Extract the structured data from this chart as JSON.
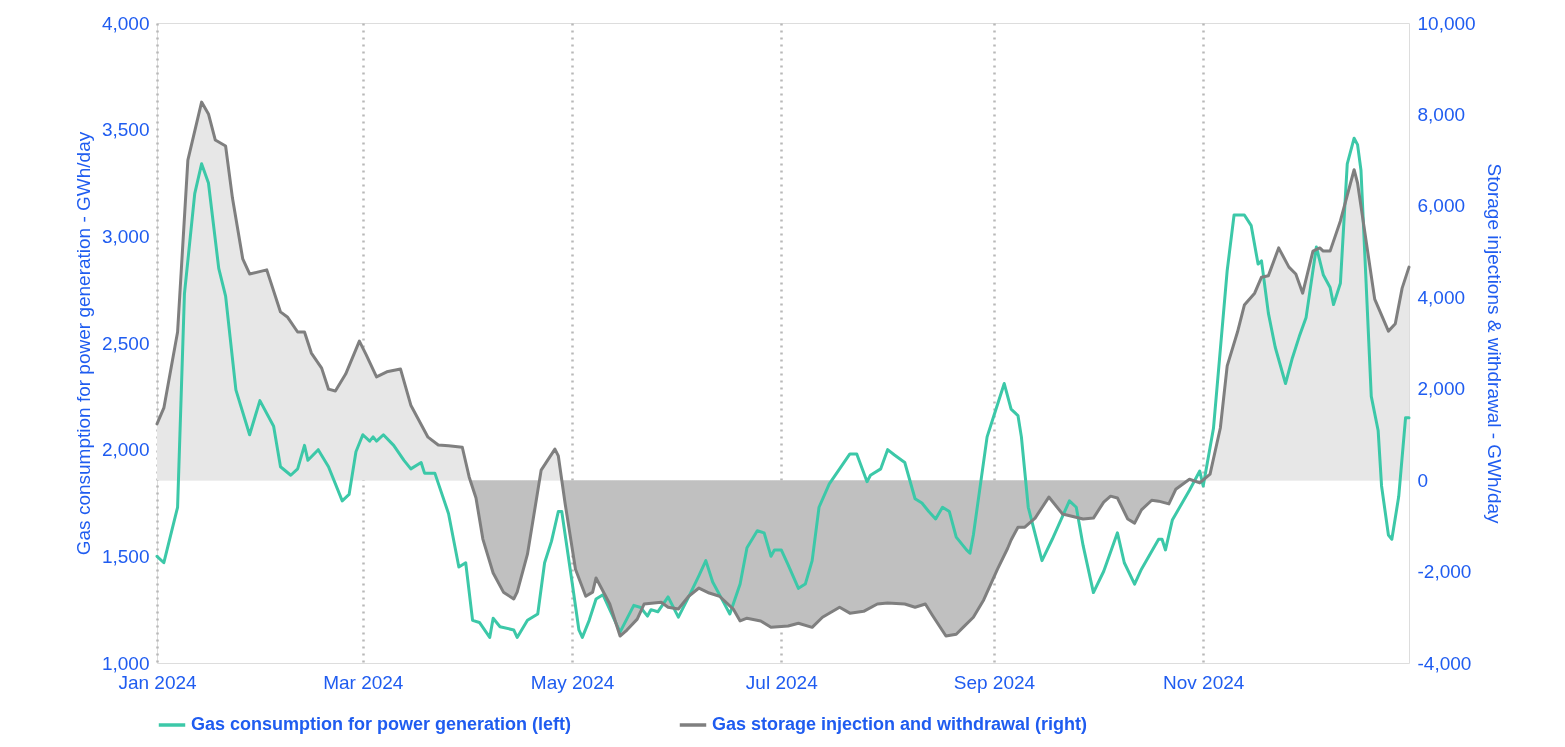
{
  "chart_data": {
    "type": "line",
    "ylabel": "Gas consumption for power generation - GWh/day",
    "y2label": "Storage injections & withdrawal - GWh/day",
    "xlim": [
      "2024-01-01",
      "2024-12-31"
    ],
    "xticks": [
      {
        "value": "2024-01-01",
        "label": "Jan 2024"
      },
      {
        "value": "2024-03-01",
        "label": "Mar 2024"
      },
      {
        "value": "2024-05-01",
        "label": "May 2024"
      },
      {
        "value": "2024-07-01",
        "label": "Jul 2024"
      },
      {
        "value": "2024-09-01",
        "label": "Sep 2024"
      },
      {
        "value": "2024-11-01",
        "label": "Nov 2024"
      }
    ],
    "ylim": [
      1000,
      4000
    ],
    "yticks": [
      {
        "value": 1000,
        "label": "1,000"
      },
      {
        "value": 1500,
        "label": "1,500"
      },
      {
        "value": 2000,
        "label": "2,000"
      },
      {
        "value": 2500,
        "label": "2,500"
      },
      {
        "value": 3000,
        "label": "3,000"
      },
      {
        "value": 3500,
        "label": "3,500"
      },
      {
        "value": 4000,
        "label": "4,000"
      }
    ],
    "y2lim": [
      -4000,
      10000
    ],
    "y2ticks": [
      {
        "value": -4000,
        "label": "-4,000"
      },
      {
        "value": -2000,
        "label": "-2,000"
      },
      0,
      {
        "value": 2000,
        "label": "2,000"
      },
      {
        "value": 4000,
        "label": "4,000"
      },
      {
        "value": 6000,
        "label": "6,000"
      },
      {
        "value": 8000,
        "label": "8,000"
      },
      {
        "value": 10000,
        "label": "10,000"
      }
    ],
    "grid": "x",
    "legend": "bottom",
    "line_style": "solid",
    "series": [
      {
        "name": "Gas consumption for power generation (left)",
        "color": "#3cc8a8",
        "x": [
          "2024-01-01",
          "2024-01-03",
          "2024-01-07",
          "2024-01-09",
          "2024-01-12",
          "2024-01-14",
          "2024-01-16",
          "2024-01-19",
          "2024-01-21",
          "2024-01-24",
          "2024-01-28",
          "2024-01-31",
          "2024-02-04",
          "2024-02-06",
          "2024-02-09",
          "2024-02-11",
          "2024-02-13",
          "2024-02-14",
          "2024-02-17",
          "2024-02-20",
          "2024-02-24",
          "2024-02-26",
          "2024-02-28",
          "2024-03-01",
          "2024-03-03",
          "2024-03-04",
          "2024-03-05",
          "2024-03-07",
          "2024-03-10",
          "2024-03-13",
          "2024-03-15",
          "2024-03-18",
          "2024-03-19",
          "2024-03-22",
          "2024-03-26",
          "2024-03-29",
          "2024-03-31",
          "2024-04-02",
          "2024-04-04",
          "2024-04-07",
          "2024-04-08",
          "2024-04-10",
          "2024-04-14",
          "2024-04-15",
          "2024-04-18",
          "2024-04-21",
          "2024-04-23",
          "2024-04-25",
          "2024-04-27",
          "2024-04-28",
          "2024-05-01",
          "2024-05-03",
          "2024-05-04",
          "2024-05-06",
          "2024-05-08",
          "2024-05-10",
          "2024-05-12",
          "2024-05-15",
          "2024-05-19",
          "2024-05-21",
          "2024-05-23",
          "2024-05-24",
          "2024-05-26",
          "2024-05-29",
          "2024-06-01",
          "2024-06-04",
          "2024-06-07",
          "2024-06-09",
          "2024-06-11",
          "2024-06-14",
          "2024-06-16",
          "2024-06-19",
          "2024-06-21",
          "2024-06-24",
          "2024-06-26",
          "2024-06-28",
          "2024-06-29",
          "2024-07-01",
          "2024-07-03",
          "2024-07-06",
          "2024-07-08",
          "2024-07-10",
          "2024-07-12",
          "2024-07-15",
          "2024-07-18",
          "2024-07-21",
          "2024-07-23",
          "2024-07-26",
          "2024-07-27",
          "2024-07-30",
          "2024-08-01",
          "2024-08-03",
          "2024-08-06",
          "2024-08-09",
          "2024-08-11",
          "2024-08-13",
          "2024-08-15",
          "2024-08-17",
          "2024-08-19",
          "2024-08-21",
          "2024-08-24",
          "2024-08-25",
          "2024-08-26",
          "2024-08-30",
          "2024-09-01",
          "2024-09-04",
          "2024-09-06",
          "2024-09-08",
          "2024-09-09",
          "2024-09-11",
          "2024-09-15",
          "2024-09-18",
          "2024-09-23",
          "2024-09-25",
          "2024-09-27",
          "2024-09-30",
          "2024-10-03",
          "2024-10-07",
          "2024-10-09",
          "2024-10-12",
          "2024-10-14",
          "2024-10-19",
          "2024-10-20",
          "2024-10-21",
          "2024-10-23",
          "2024-10-28",
          "2024-10-31",
          "2024-11-01",
          "2024-11-04",
          "2024-11-08",
          "2024-11-10",
          "2024-11-13",
          "2024-11-15",
          "2024-11-17",
          "2024-11-18",
          "2024-11-20",
          "2024-11-22",
          "2024-11-25",
          "2024-11-27",
          "2024-11-29",
          "2024-12-01",
          "2024-12-04",
          "2024-12-06",
          "2024-12-08",
          "2024-12-09",
          "2024-12-11",
          "2024-12-13",
          "2024-12-15",
          "2024-12-16",
          "2024-12-17",
          "2024-12-20",
          "2024-12-22",
          "2024-12-23",
          "2024-12-25",
          "2024-12-26",
          "2024-12-28",
          "2024-12-30",
          "2024-12-31"
        ],
        "values": [
          1500,
          1470,
          1730,
          2730,
          3200,
          3340,
          3250,
          2850,
          2720,
          2280,
          2070,
          2230,
          2110,
          1920,
          1880,
          1910,
          2020,
          1950,
          2000,
          1920,
          1760,
          1790,
          1990,
          2070,
          2040,
          2060,
          2040,
          2070,
          2020,
          1950,
          1910,
          1940,
          1890,
          1890,
          1700,
          1450,
          1470,
          1200,
          1190,
          1120,
          1210,
          1170,
          1155,
          1120,
          1200,
          1230,
          1470,
          1570,
          1710,
          1710,
          1380,
          1155,
          1120,
          1200,
          1300,
          1320,
          1250,
          1145,
          1270,
          1260,
          1220,
          1250,
          1240,
          1310,
          1215,
          1310,
          1410,
          1480,
          1380,
          1290,
          1230,
          1370,
          1540,
          1620,
          1610,
          1500,
          1530,
          1530,
          1460,
          1350,
          1370,
          1480,
          1730,
          1840,
          1910,
          1980,
          1980,
          1850,
          1880,
          1910,
          2000,
          1975,
          1940,
          1770,
          1750,
          1710,
          1675,
          1730,
          1710,
          1590,
          1530,
          1515,
          1600,
          2060,
          2160,
          2310,
          2190,
          2160,
          2060,
          1730,
          1480,
          1580,
          1760,
          1730,
          1550,
          1330,
          1430,
          1610,
          1470,
          1370,
          1440,
          1580,
          1580,
          1530,
          1670,
          1810,
          1900,
          1830,
          2100,
          2840,
          3100,
          3100,
          3050,
          2870,
          2885,
          2640,
          2480,
          2310,
          2430,
          2530,
          2620,
          2950,
          2820,
          2760,
          2680,
          2780,
          3340,
          3460,
          3430,
          3310,
          2250,
          2090,
          1830,
          1600,
          1580,
          1780,
          2150,
          2150
        ]
      },
      {
        "name": "Gas storage injection and withdrawal (right)",
        "color": "#7f7f7f",
        "type": "area",
        "axis": "y2",
        "x": [
          "2024-01-01",
          "2024-01-03",
          "2024-01-07",
          "2024-01-10",
          "2024-01-14",
          "2024-01-16",
          "2024-01-18",
          "2024-01-21",
          "2024-01-23",
          "2024-01-26",
          "2024-01-28",
          "2024-02-02",
          "2024-02-06",
          "2024-02-08",
          "2024-02-11",
          "2024-02-13",
          "2024-02-15",
          "2024-02-18",
          "2024-02-20",
          "2024-02-22",
          "2024-02-25",
          "2024-02-29",
          "2024-03-02",
          "2024-03-05",
          "2024-03-08",
          "2024-03-12",
          "2024-03-15",
          "2024-03-20",
          "2024-03-23",
          "2024-03-26",
          "2024-03-30",
          "2024-04-01",
          "2024-04-03",
          "2024-04-05",
          "2024-04-08",
          "2024-04-11",
          "2024-04-14",
          "2024-04-15",
          "2024-04-18",
          "2024-04-22",
          "2024-04-26",
          "2024-04-27",
          "2024-04-29",
          "2024-05-02",
          "2024-05-05",
          "2024-05-07",
          "2024-05-08",
          "2024-05-12",
          "2024-05-15",
          "2024-05-17",
          "2024-05-20",
          "2024-05-22",
          "2024-05-27",
          "2024-05-29",
          "2024-06-01",
          "2024-06-04",
          "2024-06-07",
          "2024-06-10",
          "2024-06-13",
          "2024-06-17",
          "2024-06-19",
          "2024-06-21",
          "2024-06-25",
          "2024-06-28",
          "2024-07-03",
          "2024-07-06",
          "2024-07-10",
          "2024-07-13",
          "2024-07-18",
          "2024-07-21",
          "2024-07-25",
          "2024-07-29",
          "2024-08-01",
          "2024-08-06",
          "2024-08-09",
          "2024-08-12",
          "2024-08-14",
          "2024-08-18",
          "2024-08-21",
          "2024-08-23",
          "2024-08-26",
          "2024-08-29",
          "2024-09-02",
          "2024-09-05",
          "2024-09-06",
          "2024-09-08",
          "2024-09-10",
          "2024-09-13",
          "2024-09-17",
          "2024-09-21",
          "2024-09-27",
          "2024-09-30",
          "2024-10-03",
          "2024-10-05",
          "2024-10-07",
          "2024-10-10",
          "2024-10-12",
          "2024-10-14",
          "2024-10-17",
          "2024-10-19",
          "2024-10-22",
          "2024-10-24",
          "2024-10-28",
          "2024-10-31",
          "2024-11-03",
          "2024-11-06",
          "2024-11-08",
          "2024-11-11",
          "2024-11-13",
          "2024-11-16",
          "2024-11-18",
          "2024-11-20",
          "2024-11-23",
          "2024-11-26",
          "2024-11-28",
          "2024-11-30",
          "2024-12-03",
          "2024-12-05",
          "2024-12-06",
          "2024-12-08",
          "2024-12-11",
          "2024-12-15",
          "2024-12-16",
          "2024-12-21",
          "2024-12-25",
          "2024-12-27",
          "2024-12-29",
          "2024-12-31"
        ],
        "values": [
          1230,
          1580,
          3240,
          7000,
          8270,
          8010,
          7440,
          7310,
          6170,
          4840,
          4510,
          4600,
          3680,
          3570,
          3240,
          3240,
          2780,
          2450,
          1990,
          1950,
          2320,
          3040,
          2740,
          2260,
          2370,
          2430,
          1640,
          940,
          770,
          750,
          720,
          70,
          -390,
          -1290,
          -2030,
          -2450,
          -2600,
          -2450,
          -1620,
          220,
          680,
          530,
          -520,
          -1950,
          -2540,
          -2450,
          -2140,
          -2710,
          -3410,
          -3280,
          -3040,
          -2710,
          -2670,
          -2780,
          -2820,
          -2540,
          -2360,
          -2470,
          -2540,
          -2820,
          -3080,
          -3020,
          -3080,
          -3220,
          -3190,
          -3130,
          -3220,
          -3000,
          -2780,
          -2910,
          -2870,
          -2710,
          -2690,
          -2710,
          -2780,
          -2710,
          -2950,
          -3410,
          -3370,
          -3220,
          -3000,
          -2620,
          -1950,
          -1490,
          -1310,
          -1030,
          -1030,
          -830,
          -370,
          -740,
          -850,
          -830,
          -480,
          -350,
          -390,
          -850,
          -940,
          -650,
          -440,
          -460,
          -520,
          -200,
          20,
          -60,
          130,
          1140,
          2500,
          3240,
          3830,
          4090,
          4440,
          4470,
          5080,
          4660,
          4510,
          4090,
          5010,
          5080,
          5010,
          5010,
          5670,
          6790,
          6500,
          3960,
          3260,
          3420,
          4200,
          4660
        ]
      }
    ]
  }
}
